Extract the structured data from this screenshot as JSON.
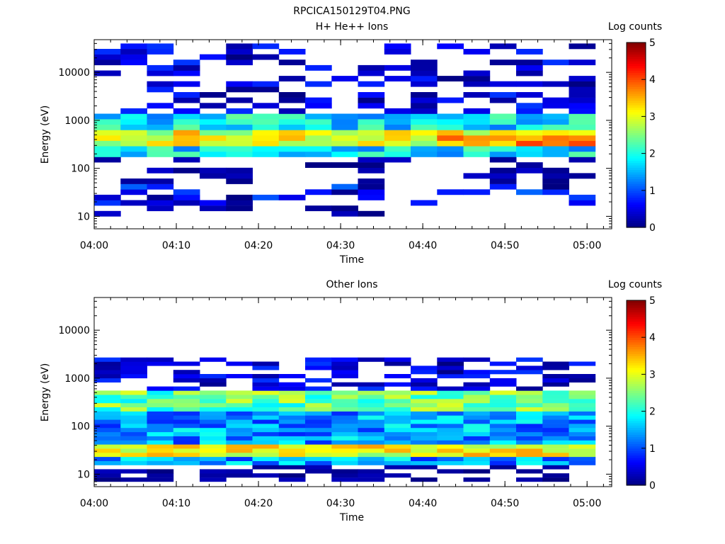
{
  "figure_title": "RPCICA150129T04.PNG",
  "chart_data": [
    {
      "type": "heatmap",
      "title": "H+ He++ Ions",
      "xlabel": "Time",
      "ylabel": "Energy (eV)",
      "xlim": [
        "04:00",
        "05:03"
      ],
      "x_ticks": [
        "04:00",
        "04:10",
        "04:20",
        "04:30",
        "04:40",
        "04:50",
        "05:00"
      ],
      "ylim": [
        5.5,
        48000
      ],
      "yscale": "log",
      "y_ticks": [
        10,
        100,
        1000,
        10000
      ],
      "y_tick_labels": [
        "10",
        "100",
        "1000",
        "10000"
      ],
      "colorbar": {
        "label": "Log counts",
        "range": [
          0,
          5
        ],
        "ticks": [
          "0",
          "1",
          "2",
          "3",
          "4",
          "5"
        ],
        "colormap": "jet"
      },
      "time_bins": {
        "start": "04:00",
        "end": "05:01",
        "count": 19
      },
      "energy_bins": {
        "min": 10,
        "max": 40000,
        "count": 32
      },
      "cells": [
        {
          "energy_range": [
            170,
            1300
          ],
          "time_range": [
            "04:00",
            "05:01"
          ],
          "log_counts": "1-3.5"
        },
        {
          "energy_range": [
            300,
            600
          ],
          "time_range": [
            "04:00",
            "05:01"
          ],
          "log_counts": "2.5-3.8"
        },
        {
          "energy_range": [
            1300,
            40000
          ],
          "time_range": [
            "04:00",
            "05:01"
          ],
          "log_counts": "0-1"
        },
        {
          "energy_range": [
            15,
            40
          ],
          "time_range": [
            "04:00",
            "05:01"
          ],
          "log_counts": "0-1.2"
        }
      ],
      "grid": false
    },
    {
      "type": "heatmap",
      "title": "Other Ions",
      "xlabel": "Time",
      "ylabel": "Energy (eV)",
      "xlim": [
        "04:00",
        "05:03"
      ],
      "x_ticks": [
        "04:00",
        "04:10",
        "04:20",
        "04:30",
        "04:40",
        "04:50",
        "05:00"
      ],
      "ylim": [
        5.5,
        48000
      ],
      "yscale": "log",
      "y_ticks": [
        10,
        100,
        1000,
        10000
      ],
      "y_tick_labels": [
        "10",
        "100",
        "1000",
        "10000"
      ],
      "colorbar": {
        "label": "Log counts",
        "range": [
          0,
          5
        ],
        "ticks": [
          "0",
          "1",
          "2",
          "3",
          "4",
          "5"
        ],
        "colormap": "jet"
      },
      "time_bins": {
        "start": "04:00",
        "end": "05:01",
        "count": 19
      },
      "energy_bins": {
        "min": 7,
        "max": 2700,
        "count": 30
      },
      "cells": [
        {
          "energy_range": [
            17,
            550
          ],
          "time_range": [
            "04:00",
            "05:01"
          ],
          "log_counts": "1-3.5"
        },
        {
          "energy_range": [
            22,
            40
          ],
          "time_range": [
            "04:00",
            "05:01"
          ],
          "log_counts": "2.5-3.6"
        },
        {
          "energy_range": [
            550,
            2700
          ],
          "time_range": [
            "04:00",
            "05:01"
          ],
          "log_counts": "0-1"
        },
        {
          "energy_range": [
            7,
            17
          ],
          "time_range": [
            "04:00",
            "05:01"
          ],
          "log_counts": "0-0.3"
        }
      ],
      "grid": false
    }
  ]
}
